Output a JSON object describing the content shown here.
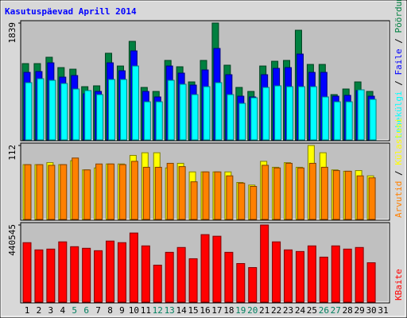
{
  "chart_data": [
    {
      "type": "bar",
      "title": "Kasutuspäevad Aprill 2014",
      "legend_separator": " / ",
      "ylim": [
        0,
        1839
      ],
      "yticks": [
        1839
      ],
      "series": [
        {
          "name": "Pöördumisi",
          "color": "#008040",
          "values": [
            1201,
            1201,
            1301,
            1138,
            1113,
            838,
            851,
            1364,
            1163,
            1551,
            826,
            763,
            1251,
            1151,
            913,
            1251,
            1839,
            1176,
            826,
            763,
            1163,
            1238,
            1251,
            1726,
            1188,
            1188,
            713,
            801,
            913,
            763,
            null
          ]
        },
        {
          "name": "Faile",
          "color": "#0000ff",
          "values": [
            1063,
            1076,
            1213,
            988,
            1013,
            726,
            763,
            1213,
            1088,
            1401,
            763,
            676,
            1163,
            1051,
            863,
            1101,
            1439,
            1026,
            688,
            676,
            1026,
            1126,
            1138,
            1351,
            1063,
            1063,
            688,
            701,
            776,
            688,
            null
          ]
        },
        {
          "name": "Lehekülgi",
          "color": "#00ffff",
          "values": [
            901,
            963,
            938,
            888,
            801,
            776,
            713,
            951,
            951,
            1163,
            600,
            600,
            938,
            876,
            713,
            838,
            901,
            713,
            575,
            663,
            826,
            851,
            838,
            838,
            838,
            676,
            600,
            600,
            788,
            638,
            null
          ]
        }
      ]
    },
    {
      "type": "bar",
      "legend_separator": " / ",
      "ylim": [
        0,
        112
      ],
      "yticks": [
        112
      ],
      "series": [
        {
          "name": "Külastusi",
          "color": "#ffff00",
          "values": [
            83,
            83,
            86,
            83,
            89,
            75,
            78,
            84,
            84,
            97,
            101,
            101,
            78,
            85,
            72,
            72,
            72,
            72,
            56,
            52,
            88,
            79,
            86,
            79,
            112,
            101,
            75,
            73,
            74,
            66,
            null
          ]
        },
        {
          "name": "Arvutid",
          "color": "#ff8000",
          "values": [
            83,
            83,
            82,
            83,
            93,
            75,
            84,
            84,
            83,
            88,
            79,
            79,
            85,
            80,
            57,
            72,
            72,
            66,
            55,
            50,
            82,
            78,
            85,
            78,
            85,
            79,
            74,
            73,
            66,
            63,
            null
          ]
        }
      ]
    },
    {
      "type": "bar",
      "ylim": [
        0,
        440545
      ],
      "yticks": [
        440545
      ],
      "categories": [
        "1",
        "2",
        "3",
        "4",
        "5",
        "6",
        "7",
        "8",
        "9",
        "10",
        "11",
        "12",
        "13",
        "14",
        "15",
        "16",
        "17",
        "18",
        "19",
        "20",
        "21",
        "22",
        "23",
        "24",
        "25",
        "26",
        "27",
        "28",
        "29",
        "30",
        "31"
      ],
      "category_colors": [
        "#000000",
        "#000000",
        "#000000",
        "#000000",
        "#008060",
        "#008060",
        "#000000",
        "#000000",
        "#000000",
        "#000000",
        "#000000",
        "#008060",
        "#008060",
        "#000000",
        "#000000",
        "#000000",
        "#000000",
        "#000000",
        "#008060",
        "#008060",
        "#000000",
        "#000000",
        "#000000",
        "#000000",
        "#000000",
        "#008060",
        "#008060",
        "#000000",
        "#000000",
        "#000000",
        "#000000"
      ],
      "series": [
        {
          "name": "KBaite",
          "color": "#ff0000",
          "values": [
            339600,
            298300,
            302900,
            344200,
            316600,
            307500,
            293700,
            348800,
            339600,
            394700,
            321200,
            211100,
            284500,
            312100,
            247800,
            385500,
            376300,
            284500,
            220300,
            197300,
            440545,
            344200,
            298300,
            289100,
            321200,
            257000,
            321200,
            302900,
            312100,
            224900,
            null
          ]
        }
      ]
    }
  ]
}
